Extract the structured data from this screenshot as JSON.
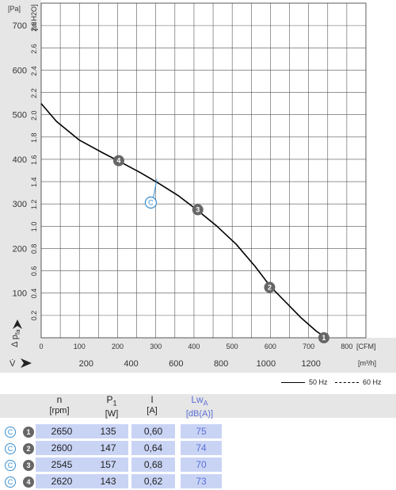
{
  "chart_data": {
    "type": "line",
    "y_left_unit": "[Pa]",
    "y_right_unit": "[in H2O]",
    "y_left_ticks": [
      "700",
      "600",
      "500",
      "400",
      "300",
      "200",
      "100"
    ],
    "y_right_ticks": [
      "2.8",
      "2.6",
      "2.4",
      "2.2",
      "2.0",
      "1.8",
      "1.6",
      "1.4",
      "1.2",
      "1.0",
      "0.8",
      "0.6",
      "0.4",
      "0.2"
    ],
    "x_cfm_unit": "[CFM]",
    "x_cfm_ticks": [
      "0",
      "100",
      "200",
      "300",
      "400",
      "500",
      "600",
      "700",
      "800"
    ],
    "x_m3h_unit": "[m³/h]",
    "x_m3h_ticks": [
      "200",
      "400",
      "600",
      "800",
      "1000",
      "1200"
    ],
    "y_axis_symbol": "Δ p",
    "y_axis_sub": "fa",
    "x_axis_symbol": "V̇",
    "xlim_cfm": [
      0,
      850
    ],
    "ylim_pa": [
      0,
      750
    ],
    "curve": {
      "x_cfm": [
        0,
        40,
        100,
        160,
        210,
        260,
        310,
        360,
        410,
        460,
        510,
        560,
        600,
        640,
        680,
        720,
        745
      ],
      "y_pa": [
        525,
        485,
        443,
        415,
        393,
        370,
        345,
        318,
        285,
        250,
        210,
        160,
        115,
        80,
        45,
        15,
        0
      ]
    },
    "points": [
      {
        "label": "1",
        "x_cfm": 740,
        "y_pa": 0
      },
      {
        "label": "2",
        "x_cfm": 598,
        "y_pa": 113
      },
      {
        "label": "3",
        "x_cfm": 410,
        "y_pa": 287
      },
      {
        "label": "4",
        "x_cfm": 203,
        "y_pa": 397
      }
    ],
    "callout": {
      "label": "C",
      "x_cfm": 287,
      "y_pa": 303,
      "target_x_cfm": 303,
      "target_y_pa": 356
    },
    "legend": [
      {
        "label": "50 Hz",
        "style": "solid"
      },
      {
        "label": "60 Hz",
        "style": "dashed"
      }
    ]
  },
  "table": {
    "headers": [
      {
        "name": "n",
        "unit": "[rpm]",
        "color": "#222222"
      },
      {
        "name": "P1",
        "unit": "[W]",
        "color": "#222222"
      },
      {
        "name": "I",
        "unit": "[A]",
        "color": "#222222"
      },
      {
        "name": "LwA",
        "unit": "[dB(A)]",
        "color": "#5b6fd6"
      }
    ],
    "rows": [
      {
        "marker": "C",
        "point": "1",
        "values": [
          "2650",
          "135",
          "0,60",
          "75"
        ]
      },
      {
        "marker": "C",
        "point": "2",
        "values": [
          "2600",
          "147",
          "0,64",
          "74"
        ]
      },
      {
        "marker": "C",
        "point": "3",
        "values": [
          "2545",
          "157",
          "0,68",
          "70"
        ]
      },
      {
        "marker": "C",
        "point": "4",
        "values": [
          "2620",
          "143",
          "0,62",
          "73"
        ]
      }
    ]
  }
}
